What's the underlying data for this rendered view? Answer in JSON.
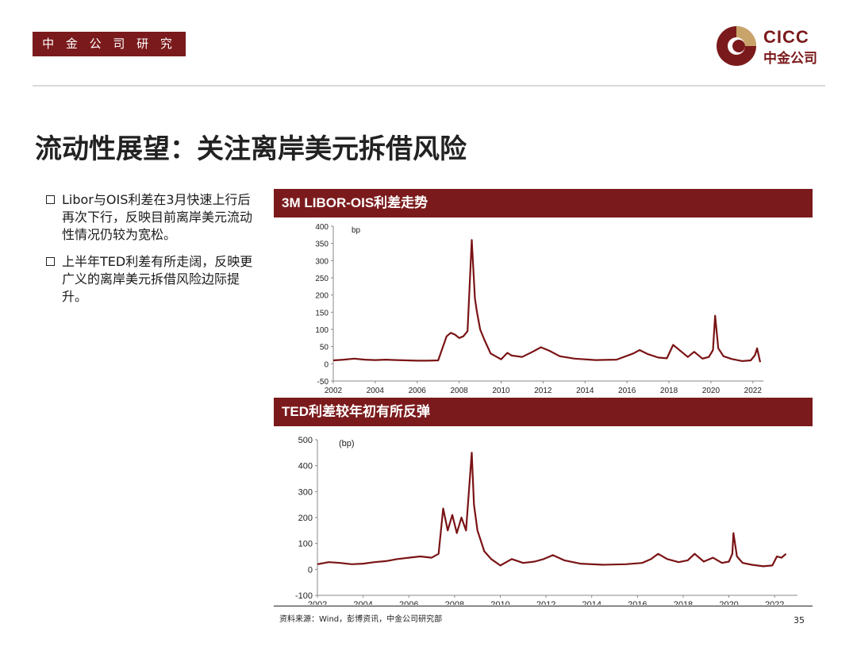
{
  "header": {
    "dept": "中 金 公 司 研 究 部",
    "logo_en": "CICC",
    "logo_cn": "中金公司"
  },
  "title": "流动性展望：关注离岸美元拆借风险",
  "bullets": [
    "Libor与OIS利差在3月快速上行后再次下行，反映目前离岸美元流动性情况仍较为宽松。",
    "上半年TED利差有所走阔，反映更广义的离岸美元拆借风险边际提升。"
  ],
  "colors": {
    "brand": "#7b1a1c",
    "gold": "#c9a46a",
    "series": "#7a1315"
  },
  "chart_data": [
    {
      "type": "line",
      "title": "3M LIBOR-OIS利差走势",
      "ylabel": "bp",
      "ylim": [
        -50,
        400
      ],
      "yticks": [
        -50,
        0,
        50,
        100,
        150,
        200,
        250,
        300,
        350,
        400
      ],
      "xlim": [
        2002,
        2022.5
      ],
      "xticks": [
        2002,
        2004,
        2006,
        2008,
        2010,
        2012,
        2014,
        2016,
        2018,
        2020,
        2022
      ],
      "grid": false,
      "series": [
        {
          "x": [
            2002,
            2002.5,
            2003,
            2003.5,
            2004,
            2004.5,
            2005,
            2005.5,
            2006,
            2006.5,
            2007,
            2007.4,
            2007.6,
            2007.8,
            2008,
            2008.2,
            2008.4,
            2008.6,
            2008.75,
            2008.85,
            2009,
            2009.2,
            2009.5,
            2010,
            2010.3,
            2010.5,
            2011,
            2011.5,
            2011.9,
            2012.3,
            2012.8,
            2013.5,
            2014.5,
            2015.5,
            2016.3,
            2016.6,
            2017,
            2017.5,
            2017.9,
            2018.2,
            2018.6,
            2018.9,
            2019.2,
            2019.6,
            2019.9,
            2020.1,
            2020.2,
            2020.35,
            2020.6,
            2021,
            2021.5,
            2021.9,
            2022.1,
            2022.2,
            2022.35
          ],
          "values": [
            10,
            12,
            15,
            12,
            11,
            12,
            11,
            10,
            9,
            9,
            10,
            80,
            90,
            85,
            75,
            80,
            95,
            360,
            190,
            150,
            100,
            70,
            30,
            13,
            32,
            24,
            20,
            35,
            48,
            38,
            22,
            15,
            11,
            12,
            30,
            40,
            28,
            18,
            16,
            55,
            35,
            20,
            35,
            15,
            20,
            40,
            140,
            45,
            22,
            14,
            8,
            10,
            25,
            45,
            5
          ]
        }
      ]
    },
    {
      "type": "line",
      "title": "TED利差较年初有所反弹",
      "ylabel": "(bp)",
      "ylim": [
        -100,
        500
      ],
      "yticks": [
        -100,
        0,
        100,
        200,
        300,
        400,
        500
      ],
      "xlim": [
        2002,
        2023
      ],
      "xticks": [
        2002,
        2004,
        2006,
        2008,
        2010,
        2012,
        2014,
        2016,
        2018,
        2020,
        2022
      ],
      "grid": false,
      "series": [
        {
          "x": [
            2002,
            2002.5,
            2003,
            2003.5,
            2004,
            2004.5,
            2005,
            2005.5,
            2006,
            2006.5,
            2007,
            2007.3,
            2007.5,
            2007.7,
            2007.9,
            2008.1,
            2008.3,
            2008.5,
            2008.75,
            2008.85,
            2009,
            2009.3,
            2009.6,
            2010,
            2010.5,
            2011,
            2011.5,
            2011.9,
            2012.3,
            2012.8,
            2013.5,
            2014.5,
            2015.5,
            2016.2,
            2016.6,
            2016.9,
            2017.3,
            2017.8,
            2018.2,
            2018.5,
            2018.9,
            2019.3,
            2019.7,
            2020,
            2020.15,
            2020.2,
            2020.35,
            2020.6,
            2021,
            2021.5,
            2021.9,
            2022.1,
            2022.3,
            2022.5
          ],
          "values": [
            20,
            28,
            25,
            20,
            22,
            28,
            32,
            40,
            45,
            50,
            45,
            60,
            235,
            150,
            210,
            140,
            200,
            150,
            450,
            250,
            150,
            70,
            40,
            15,
            40,
            25,
            30,
            40,
            55,
            35,
            22,
            18,
            20,
            25,
            40,
            60,
            40,
            28,
            35,
            60,
            30,
            45,
            25,
            30,
            60,
            140,
            50,
            25,
            18,
            12,
            15,
            50,
            45,
            60
          ]
        }
      ]
    }
  ],
  "source_note": "资料来源：Wind，彭博资讯，中金公司研究部",
  "page_number": "35"
}
